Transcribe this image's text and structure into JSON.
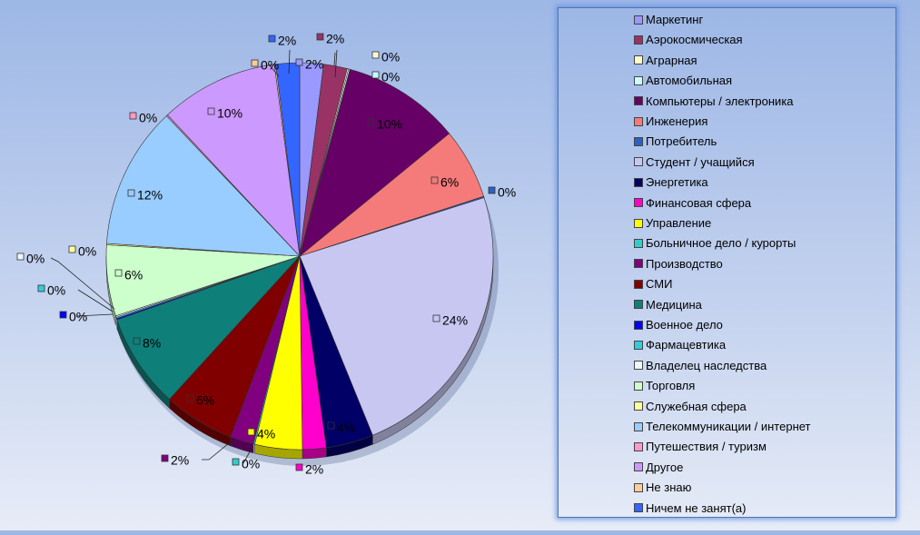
{
  "chart_data": {
    "type": "pie",
    "title": "",
    "legend_position": "right",
    "slices": [
      {
        "label": "Маркетинг",
        "value": 2,
        "value_label": "2%",
        "color": "#9999ff"
      },
      {
        "label": "Аэрокосмическая",
        "value": 2,
        "value_label": "2%",
        "color": "#993366"
      },
      {
        "label": "Аграрная",
        "value": 0,
        "value_label": "0%",
        "color": "#ffffcc"
      },
      {
        "label": "Автомобильная",
        "value": 0,
        "value_label": "0%",
        "color": "#ccffff"
      },
      {
        "label": "Компьютеры / электроника",
        "value": 10,
        "value_label": "10%",
        "color": "#660066"
      },
      {
        "label": "Инженерия",
        "value": 6,
        "value_label": "6%",
        "color": "#f57b7b"
      },
      {
        "label": "Потребитель",
        "value": 0,
        "value_label": "0%",
        "color": "#2a62c4"
      },
      {
        "label": "Студент / учащийся",
        "value": 24,
        "value_label": "24%",
        "color": "#c7c7f2"
      },
      {
        "label": "Энергетика",
        "value": 4,
        "value_label": "4%",
        "color": "#000066"
      },
      {
        "label": "Финансовая сфера",
        "value": 2,
        "value_label": "2%",
        "color": "#ff00cc"
      },
      {
        "label": "Управление",
        "value": 4,
        "value_label": "4%",
        "color": "#ffff00"
      },
      {
        "label": "Больничное дело / курорты",
        "value": 0,
        "value_label": "0%",
        "color": "#33cccc"
      },
      {
        "label": "Производство",
        "value": 2,
        "value_label": "2%",
        "color": "#800080"
      },
      {
        "label": "СМИ",
        "value": 6,
        "value_label": "6%",
        "color": "#800000"
      },
      {
        "label": "Медицина",
        "value": 8,
        "value_label": "8%",
        "color": "#0f7f7a"
      },
      {
        "label": "Военное дело",
        "value": 0,
        "value_label": "0%",
        "color": "#0000ff"
      },
      {
        "label": "Фармацевтика",
        "value": 0,
        "value_label": "0%",
        "color": "#33ccdd"
      },
      {
        "label": "Владелец наследства",
        "value": 0,
        "value_label": "0%",
        "color": "#eef8ff"
      },
      {
        "label": "Торговля",
        "value": 6,
        "value_label": "6%",
        "color": "#ccffcc"
      },
      {
        "label": "Служебная сфера",
        "value": 0,
        "value_label": "0%",
        "color": "#ffff99"
      },
      {
        "label": "Телекоммуникации / интернет",
        "value": 12,
        "value_label": "12%",
        "color": "#99ccff"
      },
      {
        "label": "Путешествия / туризм",
        "value": 0,
        "value_label": "0%",
        "color": "#ff99cc"
      },
      {
        "label": "Другое",
        "value": 10,
        "value_label": "10%",
        "color": "#cc99ff"
      },
      {
        "label": "Не знаю",
        "value": 0,
        "value_label": "0%",
        "color": "#ffcc99"
      },
      {
        "label": "Ничем не занят(а)",
        "value": 2,
        "value_label": "2%",
        "color": "#3366ff"
      }
    ]
  }
}
